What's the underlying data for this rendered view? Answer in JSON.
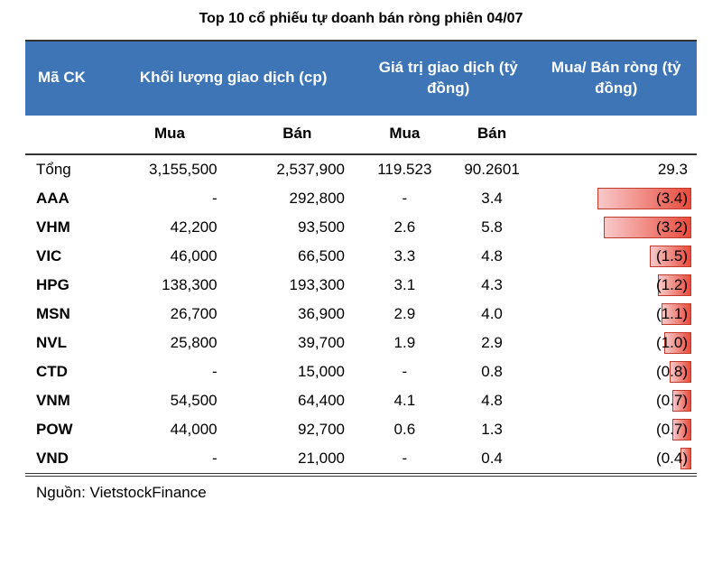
{
  "title": "Top 10 cổ phiếu tự doanh bán ròng phiên 04/07",
  "headers": {
    "code": "Mã CK",
    "volume_group": "Khối lượng giao dịch (cp)",
    "value_group": "Giá trị giao dịch (tỷ đồng)",
    "net_group": "Mua/ Bán ròng (tỷ đồng)",
    "buy": "Mua",
    "sell": "Bán"
  },
  "total_row": {
    "label": "Tổng",
    "vol_buy": "3,155,500",
    "vol_sell": "2,537,900",
    "val_buy": "119.523",
    "val_sell": "90.2601",
    "net": "29.3"
  },
  "rows": [
    {
      "code": "AAA",
      "vol_buy": "-",
      "vol_sell": "292,800",
      "val_buy": "-",
      "val_sell": "3.4",
      "net_label": "(3.4)",
      "net_value": 3.4
    },
    {
      "code": "VHM",
      "vol_buy": "42,200",
      "vol_sell": "93,500",
      "val_buy": "2.6",
      "val_sell": "5.8",
      "net_label": "(3.2)",
      "net_value": 3.2
    },
    {
      "code": "VIC",
      "vol_buy": "46,000",
      "vol_sell": "66,500",
      "val_buy": "3.3",
      "val_sell": "4.8",
      "net_label": "(1.5)",
      "net_value": 1.5
    },
    {
      "code": "HPG",
      "vol_buy": "138,300",
      "vol_sell": "193,300",
      "val_buy": "3.1",
      "val_sell": "4.3",
      "net_label": "(1.2)",
      "net_value": 1.2
    },
    {
      "code": "MSN",
      "vol_buy": "26,700",
      "vol_sell": "36,900",
      "val_buy": "2.9",
      "val_sell": "4.0",
      "net_label": "(1.1)",
      "net_value": 1.1
    },
    {
      "code": "NVL",
      "vol_buy": "25,800",
      "vol_sell": "39,700",
      "val_buy": "1.9",
      "val_sell": "2.9",
      "net_label": "(1.0)",
      "net_value": 1.0
    },
    {
      "code": "CTD",
      "vol_buy": "-",
      "vol_sell": "15,000",
      "val_buy": "-",
      "val_sell": "0.8",
      "net_label": "(0.8)",
      "net_value": 0.8
    },
    {
      "code": "VNM",
      "vol_buy": "54,500",
      "vol_sell": "64,400",
      "val_buy": "4.1",
      "val_sell": "4.8",
      "net_label": "(0.7)",
      "net_value": 0.7
    },
    {
      "code": "POW",
      "vol_buy": "44,000",
      "vol_sell": "92,700",
      "val_buy": "0.6",
      "val_sell": "1.3",
      "net_label": "(0.7)",
      "net_value": 0.7
    },
    {
      "code": "VND",
      "vol_buy": "-",
      "vol_sell": "21,000",
      "val_buy": "-",
      "val_sell": "0.4",
      "net_label": "(0.4)",
      "net_value": 0.4
    }
  ],
  "bar_chart": {
    "max_value": 3.4,
    "max_width_pct": 60,
    "gradient_from": "#f8c9c9",
    "gradient_to": "#e84c3d",
    "border_color": "#c0392b"
  },
  "colors": {
    "header_bg": "#3d75b6",
    "header_fg": "#ffffff",
    "text": "#000000",
    "border": "#333333",
    "page_bg": "#ffffff"
  },
  "typography": {
    "title_fontsize": 16,
    "cell_fontsize": 17,
    "header_fontsize": 17,
    "font_family": "Arial"
  },
  "source": "Nguồn: VietstockFinance"
}
